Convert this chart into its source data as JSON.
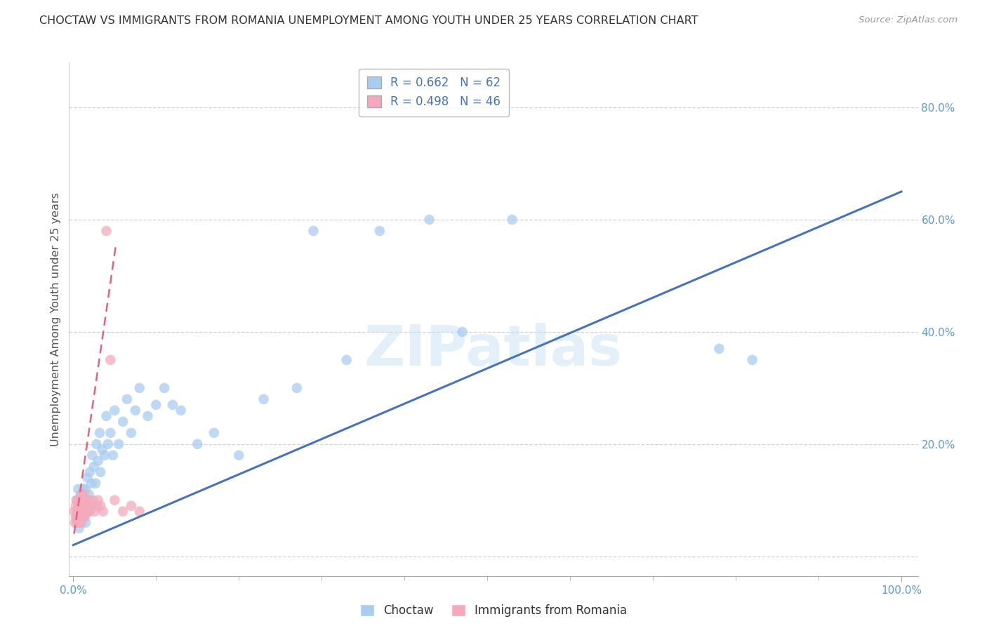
{
  "title": "CHOCTAW VS IMMIGRANTS FROM ROMANIA UNEMPLOYMENT AMONG YOUTH UNDER 25 YEARS CORRELATION CHART",
  "source": "Source: ZipAtlas.com",
  "ylabel": "Unemployment Among Youth under 25 years",
  "watermark": "ZIPatlas",
  "choctaw_R": 0.662,
  "choctaw_N": 62,
  "romania_R": 0.498,
  "romania_N": 46,
  "choctaw_color": "#a8cdf0",
  "romania_color": "#f4aabc",
  "choctaw_line_color": "#4472c4",
  "romania_line_color": "#e8607a",
  "xlim": [
    -0.005,
    1.02
  ],
  "ylim": [
    -0.035,
    0.88
  ],
  "choctaw_x": [
    0.003,
    0.004,
    0.005,
    0.005,
    0.006,
    0.007,
    0.007,
    0.008,
    0.009,
    0.01,
    0.01,
    0.011,
    0.012,
    0.013,
    0.014,
    0.015,
    0.015,
    0.016,
    0.017,
    0.018,
    0.019,
    0.02,
    0.021,
    0.022,
    0.023,
    0.025,
    0.027,
    0.028,
    0.03,
    0.032,
    0.033,
    0.035,
    0.038,
    0.04,
    0.042,
    0.045,
    0.048,
    0.05,
    0.055,
    0.06,
    0.065,
    0.07,
    0.075,
    0.08,
    0.09,
    0.1,
    0.11,
    0.12,
    0.13,
    0.15,
    0.17,
    0.2,
    0.23,
    0.27,
    0.29,
    0.33,
    0.37,
    0.43,
    0.47,
    0.53,
    0.78,
    0.82
  ],
  "choctaw_y": [
    0.07,
    0.1,
    0.06,
    0.08,
    0.12,
    0.05,
    0.09,
    0.07,
    0.11,
    0.06,
    0.1,
    0.08,
    0.12,
    0.07,
    0.09,
    0.12,
    0.06,
    0.1,
    0.14,
    0.08,
    0.11,
    0.15,
    0.09,
    0.13,
    0.18,
    0.16,
    0.13,
    0.2,
    0.17,
    0.22,
    0.15,
    0.19,
    0.18,
    0.25,
    0.2,
    0.22,
    0.18,
    0.26,
    0.2,
    0.24,
    0.28,
    0.22,
    0.26,
    0.3,
    0.25,
    0.27,
    0.3,
    0.27,
    0.26,
    0.2,
    0.22,
    0.18,
    0.28,
    0.3,
    0.58,
    0.35,
    0.58,
    0.6,
    0.4,
    0.6,
    0.37,
    0.35
  ],
  "romania_x": [
    0.001,
    0.002,
    0.003,
    0.004,
    0.004,
    0.005,
    0.005,
    0.006,
    0.006,
    0.007,
    0.007,
    0.008,
    0.008,
    0.009,
    0.009,
    0.01,
    0.01,
    0.01,
    0.011,
    0.011,
    0.012,
    0.012,
    0.013,
    0.013,
    0.014,
    0.014,
    0.015,
    0.015,
    0.016,
    0.017,
    0.018,
    0.019,
    0.02,
    0.022,
    0.024,
    0.026,
    0.028,
    0.03,
    0.033,
    0.036,
    0.04,
    0.045,
    0.05,
    0.06,
    0.07,
    0.08
  ],
  "romania_y": [
    0.08,
    0.06,
    0.09,
    0.07,
    0.1,
    0.06,
    0.08,
    0.07,
    0.09,
    0.06,
    0.08,
    0.07,
    0.09,
    0.06,
    0.1,
    0.07,
    0.09,
    0.11,
    0.08,
    0.1,
    0.07,
    0.09,
    0.08,
    0.11,
    0.07,
    0.09,
    0.08,
    0.1,
    0.08,
    0.09,
    0.08,
    0.1,
    0.08,
    0.09,
    0.1,
    0.08,
    0.09,
    0.1,
    0.09,
    0.08,
    0.58,
    0.35,
    0.1,
    0.08,
    0.09,
    0.08
  ],
  "choctaw_line_x": [
    0.0,
    1.0
  ],
  "choctaw_line_y": [
    0.02,
    0.65
  ],
  "romania_line_x": [
    0.001,
    0.052
  ],
  "romania_line_y": [
    0.04,
    0.56
  ]
}
